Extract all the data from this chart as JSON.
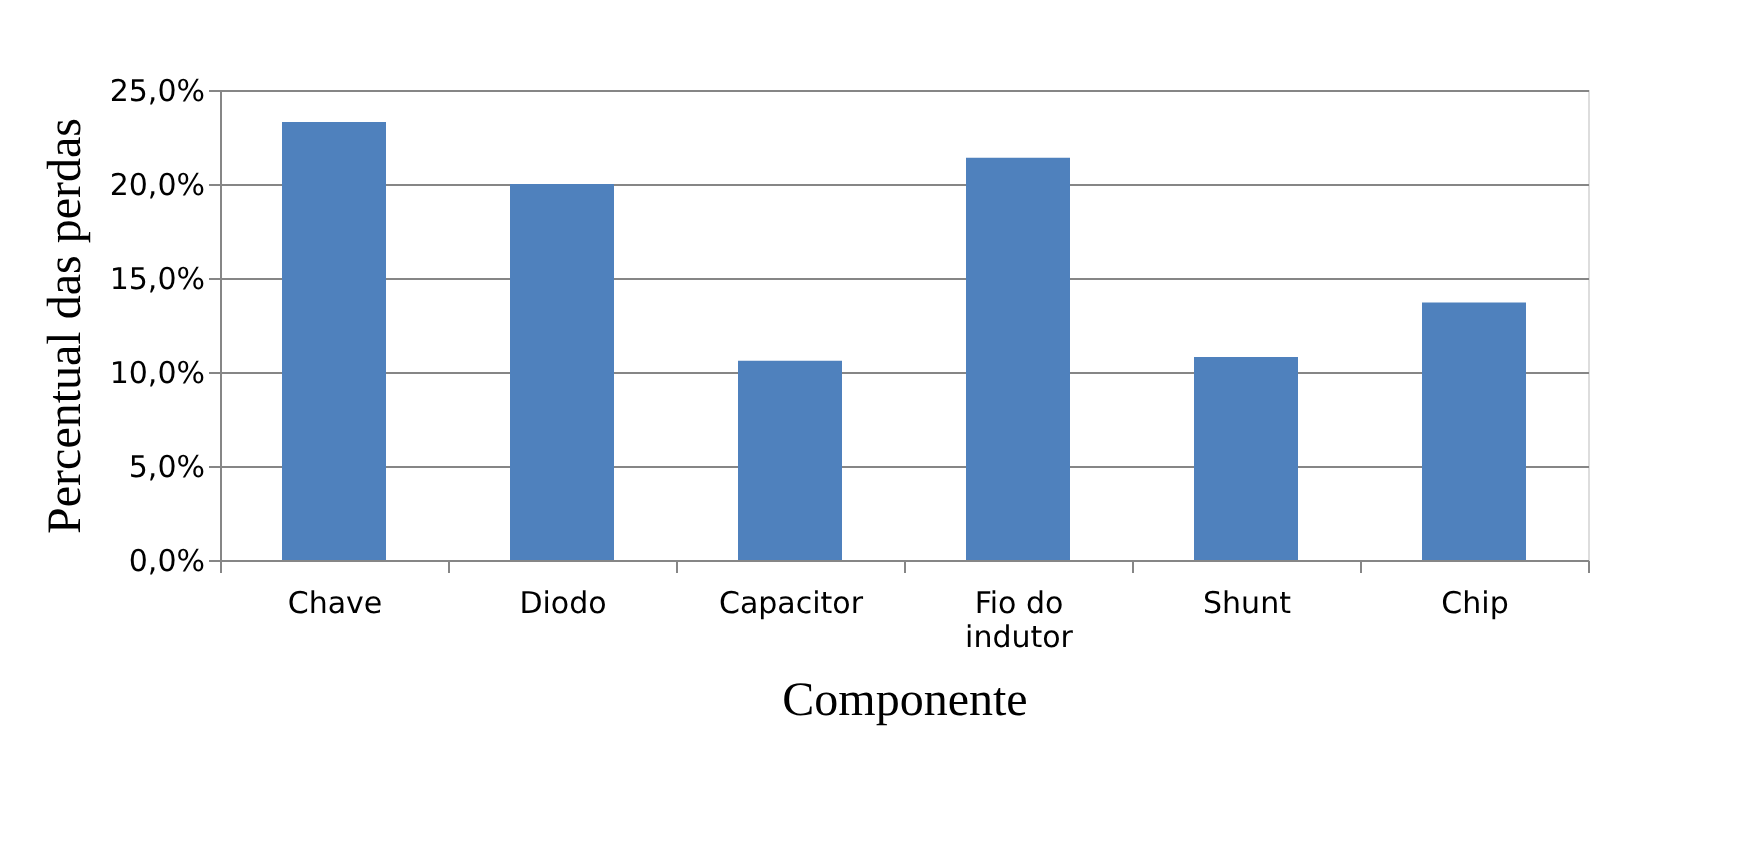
{
  "chart_data": {
    "type": "bar",
    "xlabel": "Componente",
    "ylabel": "Percentual das perdas",
    "categories": [
      "Chave",
      "Diodo",
      "Capacitor",
      "Fio do indutor",
      "Shunt",
      "Chip"
    ],
    "values": [
      23.3,
      20.0,
      10.6,
      21.4,
      10.8,
      13.7
    ],
    "color": "#4f81bd",
    "ylim": [
      0,
      25
    ],
    "yticks": [
      {
        "value": 0,
        "label": "0,0%"
      },
      {
        "value": 5,
        "label": "5,0%"
      },
      {
        "value": 10,
        "label": "10,0%"
      },
      {
        "value": 15,
        "label": "15,0%"
      },
      {
        "value": 20,
        "label": "20,0%"
      },
      {
        "value": 25,
        "label": "25,0%"
      }
    ],
    "grid": "y"
  }
}
